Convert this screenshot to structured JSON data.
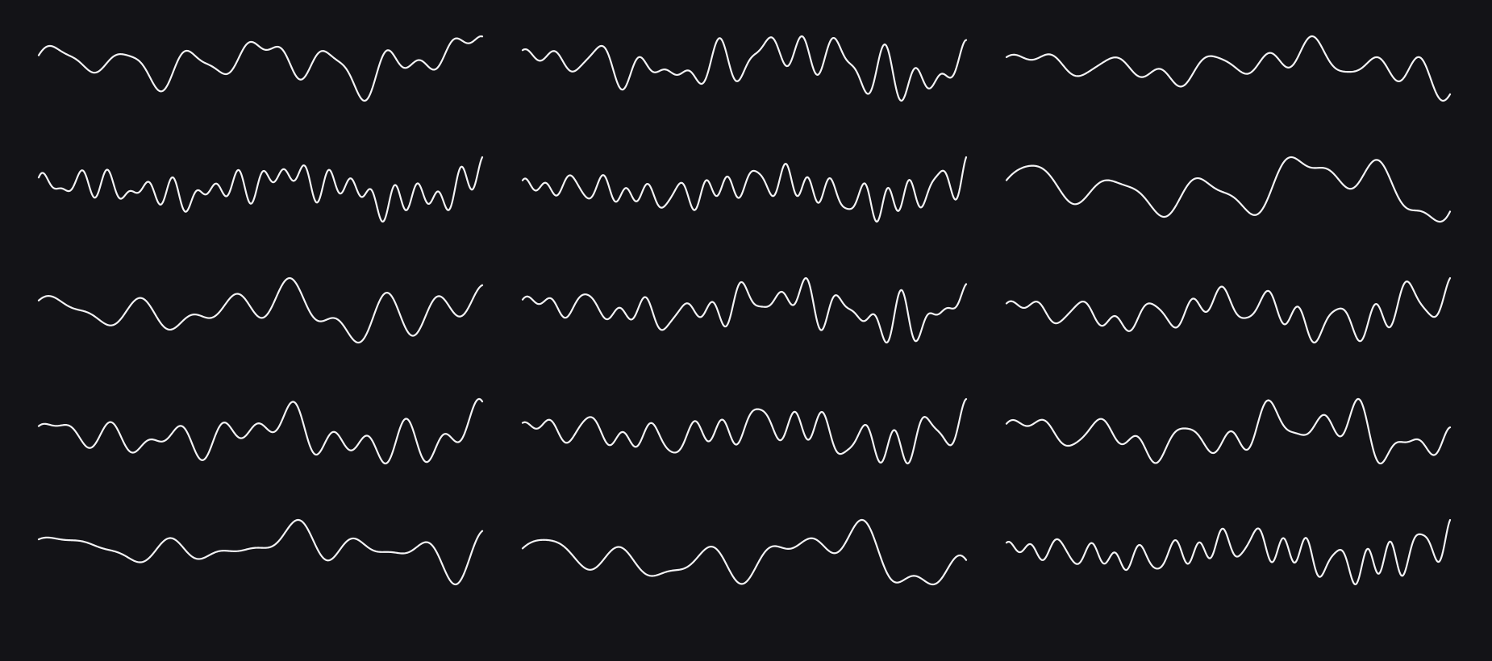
{
  "colors": {
    "background": "#131317",
    "stroke": "#f4f4f6"
  },
  "waves": [
    {
      "col": 0,
      "row": 0,
      "components": [
        [
          2.2,
          0.9,
          0.3,
          1.0
        ],
        [
          6.5,
          0.0,
          0.85,
          1.0
        ],
        [
          9.0,
          1.6,
          0.18,
          0.5
        ],
        [
          13.0,
          0.7,
          0.12,
          0.6
        ]
      ]
    },
    {
      "col": 1,
      "row": 0,
      "components": [
        [
          1.8,
          1.1,
          0.22,
          0.9
        ],
        [
          7.5,
          0.0,
          0.45,
          0.4
        ],
        [
          11.0,
          2.1,
          0.4,
          0.8
        ],
        [
          16.0,
          1.0,
          0.12,
          0.7
        ]
      ]
    },
    {
      "col": 2,
      "row": 0,
      "components": [
        [
          1.6,
          1.2,
          0.32,
          1.0
        ],
        [
          4.8,
          0.0,
          0.6,
          0.6
        ],
        [
          8.5,
          1.9,
          0.32,
          1.0
        ],
        [
          12.0,
          0.5,
          0.12,
          0.5
        ]
      ]
    },
    {
      "col": 0,
      "row": 1,
      "components": [
        [
          2.0,
          0.8,
          0.2,
          1.0
        ],
        [
          14.0,
          0.0,
          0.6,
          0.3
        ],
        [
          20.0,
          1.3,
          0.4,
          0.8
        ],
        [
          7.0,
          2.2,
          0.12,
          0.5
        ]
      ]
    },
    {
      "col": 1,
      "row": 1,
      "components": [
        [
          2.1,
          0.6,
          0.2,
          1.0
        ],
        [
          12.0,
          0.0,
          0.45,
          0.5
        ],
        [
          17.0,
          1.8,
          0.4,
          0.8
        ],
        [
          22.0,
          0.9,
          0.18,
          0.6
        ]
      ]
    },
    {
      "col": 2,
      "row": 1,
      "components": [
        [
          1.5,
          1.1,
          0.3,
          1.0
        ],
        [
          5.0,
          0.0,
          0.8,
          0.9
        ],
        [
          9.5,
          2.0,
          0.12,
          0.5
        ],
        [
          3.0,
          0.4,
          0.1,
          0.5
        ]
      ]
    },
    {
      "col": 0,
      "row": 2,
      "components": [
        [
          2.0,
          1.4,
          0.28,
          0.8
        ],
        [
          5.5,
          0.0,
          0.45,
          0.6
        ],
        [
          9.0,
          1.2,
          0.2,
          1.0
        ],
        [
          3.5,
          2.3,
          0.12,
          0.5
        ]
      ]
    },
    {
      "col": 1,
      "row": 2,
      "components": [
        [
          1.9,
          1.0,
          0.22,
          1.0
        ],
        [
          8.5,
          0.0,
          0.5,
          0.6
        ],
        [
          14.0,
          1.8,
          0.32,
          1.0
        ],
        [
          19.0,
          0.3,
          0.12,
          0.6
        ]
      ]
    },
    {
      "col": 2,
      "row": 2,
      "components": [
        [
          2.1,
          1.3,
          0.22,
          1.0
        ],
        [
          7.0,
          0.0,
          0.5,
          0.6
        ],
        [
          12.0,
          1.9,
          0.3,
          1.0
        ],
        [
          17.0,
          0.6,
          0.12,
          0.5
        ]
      ]
    },
    {
      "col": 0,
      "row": 3,
      "components": [
        [
          2.0,
          1.2,
          0.22,
          1.0
        ],
        [
          7.5,
          0.0,
          0.6,
          0.6
        ],
        [
          12.0,
          2.0,
          0.35,
          1.0
        ],
        [
          4.0,
          0.5,
          0.12,
          0.5
        ]
      ]
    },
    {
      "col": 1,
      "row": 3,
      "components": [
        [
          2.0,
          0.9,
          0.22,
          1.0
        ],
        [
          8.0,
          0.0,
          0.55,
          0.5
        ],
        [
          13.0,
          2.2,
          0.4,
          1.0
        ],
        [
          18.0,
          1.1,
          0.12,
          0.6
        ]
      ]
    },
    {
      "col": 2,
      "row": 3,
      "components": [
        [
          1.6,
          1.1,
          0.3,
          1.0
        ],
        [
          5.5,
          0.0,
          0.65,
          0.7
        ],
        [
          10.0,
          1.7,
          0.3,
          1.0
        ],
        [
          14.0,
          0.8,
          0.12,
          0.6
        ]
      ]
    },
    {
      "col": 0,
      "row": 4,
      "components": [
        [
          1.7,
          1.5,
          0.3,
          0.7
        ],
        [
          4.0,
          0.0,
          0.45,
          0.5
        ],
        [
          7.0,
          1.2,
          0.18,
          1.0
        ],
        [
          10.0,
          2.0,
          0.1,
          0.5
        ]
      ]
    },
    {
      "col": 1,
      "row": 4,
      "components": [
        [
          1.6,
          1.1,
          0.3,
          0.9
        ],
        [
          5.5,
          0.0,
          0.55,
          0.6
        ],
        [
          9.0,
          2.1,
          0.14,
          0.6
        ],
        [
          3.0,
          0.6,
          0.1,
          0.5
        ]
      ]
    },
    {
      "col": 2,
      "row": 4,
      "components": [
        [
          2.0,
          1.2,
          0.2,
          1.0
        ],
        [
          11.0,
          0.0,
          0.4,
          0.6
        ],
        [
          16.0,
          2.0,
          0.4,
          0.9
        ],
        [
          21.0,
          0.8,
          0.15,
          0.6
        ]
      ]
    }
  ]
}
